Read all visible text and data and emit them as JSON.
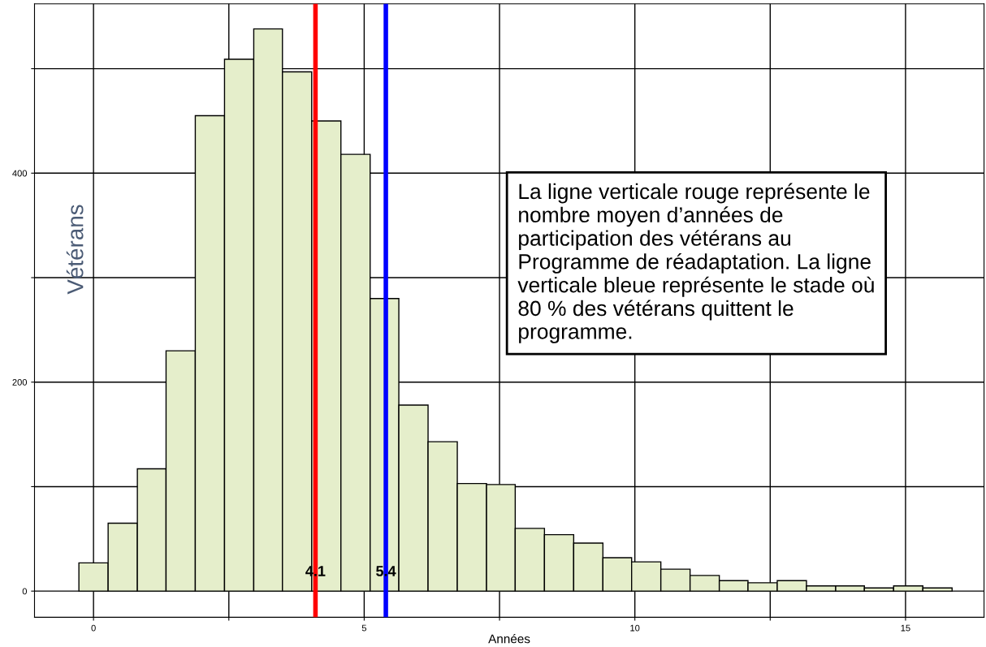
{
  "chart_data": {
    "type": "histogram",
    "xlabel": "Années",
    "ylabel": "Vétérans",
    "bins": [
      -0.27,
      0.27,
      0.81,
      1.34,
      1.88,
      2.42,
      2.96,
      3.49,
      4.03,
      4.57,
      5.11,
      5.64,
      6.18,
      6.72,
      7.26,
      7.79,
      8.33,
      8.87,
      9.41,
      9.94,
      10.48,
      11.02,
      11.56,
      12.09,
      12.63,
      13.17,
      13.71,
      14.24,
      14.78,
      15.32,
      15.86
    ],
    "values": [
      27,
      65,
      117,
      230,
      455,
      509,
      538,
      497,
      450,
      418,
      280,
      178,
      143,
      103,
      102,
      60,
      54,
      46,
      32,
      28,
      21,
      15,
      10,
      8,
      10,
      5,
      5,
      3,
      5,
      3
    ],
    "color": "#e5eecb",
    "xlim": [
      -1.09,
      16.45
    ],
    "ylim": [
      -25,
      562
    ],
    "xticks": [
      0,
      {
        "value": 2.5,
        "label": null
      },
      5,
      {
        "value": 7.5,
        "label": null
      },
      10,
      {
        "value": 12.5,
        "label": null
      },
      15
    ],
    "yticks": [
      0,
      {
        "value": 100,
        "label": null
      },
      200,
      {
        "value": 300,
        "label": null
      },
      400,
      {
        "value": 500,
        "label": null
      }
    ],
    "grid": true,
    "ref_lines": [
      {
        "axis": "x",
        "value": 4.1,
        "label": "4.1",
        "color": "#ff0000"
      },
      {
        "axis": "x",
        "value": 5.4,
        "label": "5.4",
        "color": "#0000ff"
      }
    ],
    "annotations": [
      "La ligne verticale rouge représente le nombre moyen d’années de participation des vétérans au Programme de réadaptation. La ligne verticale bleue représente le stade où 80 % des vétérans quittent le programme."
    ]
  }
}
